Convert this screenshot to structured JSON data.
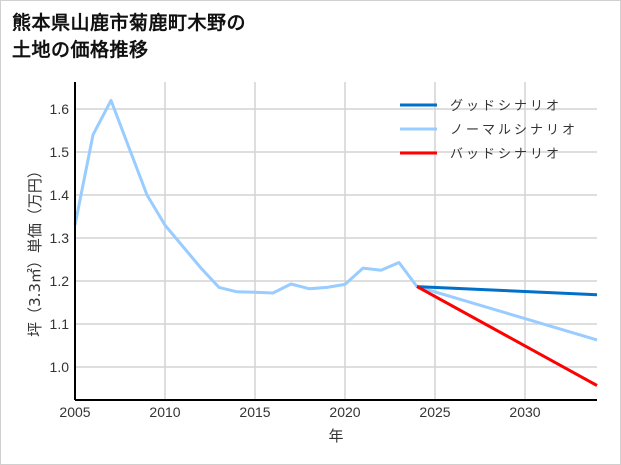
{
  "title_line1": "熊本県山鹿市菊鹿町木野の",
  "title_line2": "土地の価格推移",
  "chart_data": {
    "type": "line",
    "title": "熊本県山鹿市菊鹿町木野の土地の価格推移",
    "xlabel": "年",
    "ylabel": "坪（3.3㎡）単価（万円）",
    "xlim": [
      2005,
      2034
    ],
    "ylim": [
      0.93,
      1.66
    ],
    "x_ticks": [
      2005,
      2010,
      2015,
      2020,
      2025,
      2030
    ],
    "y_ticks": [
      1.0,
      1.1,
      1.2,
      1.3,
      1.4,
      1.5,
      1.6
    ],
    "grid": true,
    "legend_position": "upper right",
    "series": [
      {
        "name": "グッドシナリオ",
        "color": "#0070c8",
        "x": [
          2024,
          2034
        ],
        "values": [
          1.187,
          1.168
        ]
      },
      {
        "name": "ノーマルシナリオ",
        "color": "#99ccff",
        "x": [
          2005,
          2006,
          2007,
          2008,
          2009,
          2010,
          2011,
          2012,
          2013,
          2014,
          2015,
          2016,
          2017,
          2018,
          2019,
          2020,
          2021,
          2022,
          2023,
          2024,
          2034
        ],
        "values": [
          1.33,
          1.54,
          1.62,
          1.51,
          1.4,
          1.33,
          1.28,
          1.23,
          1.185,
          1.175,
          1.174,
          1.172,
          1.193,
          1.182,
          1.185,
          1.192,
          1.23,
          1.225,
          1.243,
          1.187,
          1.063
        ]
      },
      {
        "name": "バッドシナリオ",
        "color": "#ff0000",
        "x": [
          2024,
          2034
        ],
        "values": [
          1.187,
          0.957
        ]
      }
    ]
  }
}
